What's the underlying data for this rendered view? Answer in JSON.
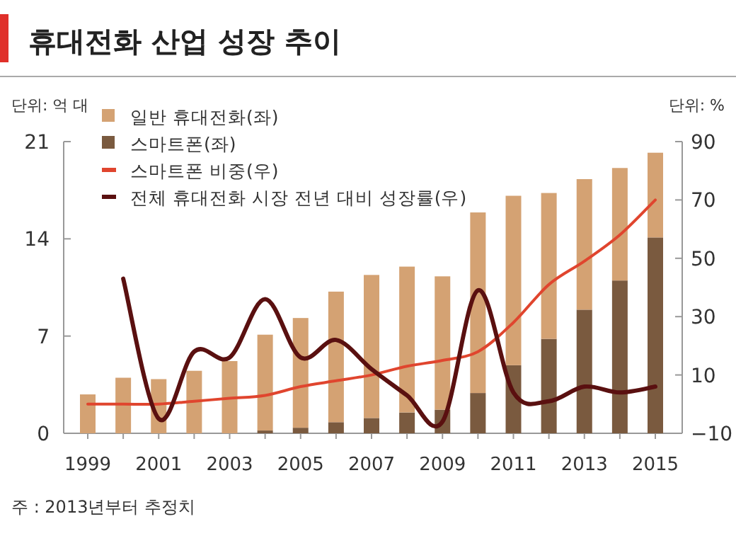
{
  "chart_data": {
    "type": "bar",
    "title": "휴대전화 산업 성장 추이",
    "ylabel": "단위: 억 대",
    "y2label": "단위: %",
    "annotations": [
      "주 : 2013년부터 추정치"
    ],
    "categories": [
      "1999",
      null,
      "2001",
      null,
      "2003",
      null,
      "2005",
      null,
      "2007",
      null,
      "2009",
      null,
      "2011",
      null,
      "2013",
      null,
      "2015"
    ],
    "stacked": true,
    "legend": "top left",
    "ylim": [
      0,
      21
    ],
    "yticks": [
      0,
      7,
      14,
      21
    ],
    "y2lim": [
      -10,
      90
    ],
    "y2ticks": [
      {
        "value": -10,
        "label": "−10"
      },
      10,
      30,
      50,
      70,
      90
    ],
    "series": [
      {
        "name": "스마트폰(좌)",
        "color": "#7a5a3f",
        "values": [
          0,
          0,
          0,
          0,
          0,
          0.2,
          0.4,
          0.8,
          1.1,
          1.5,
          1.7,
          2.9,
          4.9,
          6.8,
          8.9,
          11.0,
          14.1
        ]
      },
      {
        "name": "일반 휴대전화(좌)",
        "color": "#d4a273",
        "values": [
          2.8,
          4.0,
          3.9,
          4.5,
          5.2,
          6.9,
          7.9,
          9.4,
          10.3,
          10.5,
          9.6,
          13.0,
          12.2,
          10.5,
          9.4,
          8.1,
          6.1
        ]
      },
      {
        "name": "스마트폰 비중(우)",
        "type": "line",
        "axis": "y2",
        "color": "#e0452e",
        "values": [
          0,
          0,
          0,
          1,
          2,
          3,
          6,
          8,
          10,
          13,
          15,
          18,
          28,
          41,
          49,
          58,
          70
        ]
      },
      {
        "name": "전체 휴대전화 시장 전년 대비 성장률(우)",
        "type": "line",
        "axis": "y2",
        "color": "#5a1010",
        "values": [
          null,
          43,
          -5,
          18,
          16,
          36,
          16,
          22,
          12,
          3,
          -6,
          39,
          4,
          1,
          6,
          4,
          6
        ]
      }
    ]
  }
}
